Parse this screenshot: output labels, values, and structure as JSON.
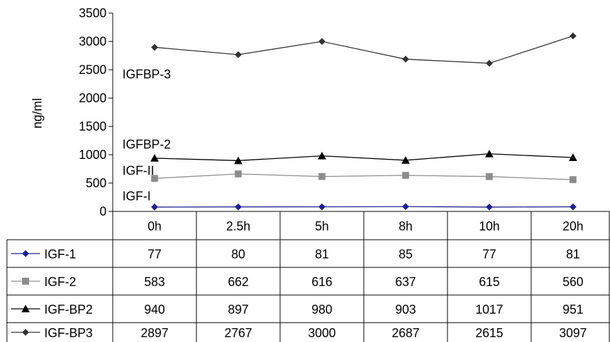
{
  "chart_data": {
    "type": "line",
    "ylabel": "ng/ml",
    "xlabel": "",
    "ylim": [
      0,
      3500
    ],
    "yticks": [
      0,
      500,
      1000,
      1500,
      2000,
      2500,
      3000,
      3500
    ],
    "categories": [
      "0h",
      "2.5h",
      "5h",
      "8h",
      "10h",
      "20h"
    ],
    "grid": false,
    "series": [
      {
        "name": "IGF-1",
        "values": [
          77,
          80,
          81,
          85,
          77,
          81
        ],
        "color": "#1f1f8f",
        "marker": "diamond",
        "dash": false
      },
      {
        "name": "IGF-2",
        "values": [
          583,
          662,
          616,
          637,
          615,
          560
        ],
        "color": "#8c8c8c",
        "marker": "square",
        "dash": false
      },
      {
        "name": "IGF-BP2",
        "values": [
          940,
          897,
          980,
          903,
          1017,
          951
        ],
        "color": "#000000",
        "marker": "triangle",
        "dash": false
      },
      {
        "name": "IGF-BP3",
        "values": [
          2897,
          2767,
          3000,
          2687,
          2615,
          3097
        ],
        "color": "#333333",
        "marker": "diamond",
        "dash": false
      }
    ],
    "annotations": [
      {
        "text": "IGFBP-3",
        "y": 2420
      },
      {
        "text": "IGFBP-2",
        "y": 1180
      },
      {
        "text": "IGF-II",
        "y": 720
      },
      {
        "text": "IGF-I",
        "y": 270
      }
    ],
    "legend": "data-table-below"
  }
}
